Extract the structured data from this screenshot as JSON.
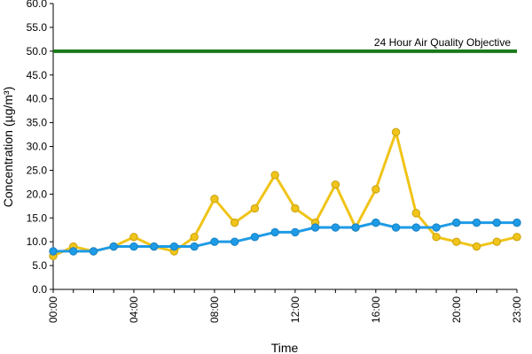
{
  "chart_data": {
    "type": "line",
    "xlabel": "Time",
    "ylabel": "Concentration (µg/m³)",
    "ylim": [
      0,
      60
    ],
    "y_ticks": [
      "0.0",
      "5.0",
      "10.0",
      "15.0",
      "20.0",
      "25.0",
      "30.0",
      "35.0",
      "40.0",
      "45.0",
      "50.0",
      "55.0",
      "60.0"
    ],
    "x_tick_labels": [
      {
        "hour": 0,
        "label": "00:00"
      },
      {
        "hour": 4,
        "label": "04:00"
      },
      {
        "hour": 8,
        "label": "08:00"
      },
      {
        "hour": 12,
        "label": "12:00"
      },
      {
        "hour": 16,
        "label": "16:00"
      },
      {
        "hour": 20,
        "label": "20:00"
      },
      {
        "hour": 23,
        "label": "23:00"
      }
    ],
    "x": [
      0,
      1,
      2,
      3,
      4,
      5,
      6,
      7,
      8,
      9,
      10,
      11,
      12,
      13,
      14,
      15,
      16,
      17,
      18,
      19,
      20,
      21,
      22,
      23
    ],
    "series": [
      {
        "color": "#f0c419",
        "values": [
          7,
          9,
          8,
          9,
          11,
          9,
          8,
          11,
          19,
          14,
          17,
          24,
          17,
          14,
          22,
          13,
          21,
          33,
          16,
          11,
          10,
          9,
          10,
          11
        ]
      },
      {
        "color": "#1e9be6",
        "values": [
          8,
          8,
          8,
          9,
          9,
          9,
          9,
          9,
          10,
          10,
          11,
          12,
          12,
          13,
          13,
          13,
          14,
          13,
          13,
          13,
          14,
          14,
          14,
          14
        ]
      }
    ],
    "reference_line": {
      "value": 50,
      "label": "24 Hour Air Quality Objective",
      "color": "#1a7a1a"
    },
    "grid": false
  }
}
